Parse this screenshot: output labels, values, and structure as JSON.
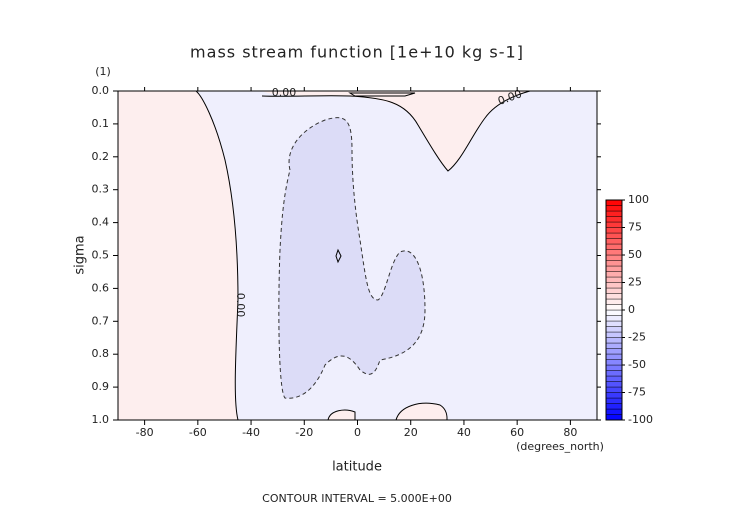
{
  "chart_data": {
    "type": "contour",
    "title": "mass stream function [1e+10 kg s-1]",
    "xlabel": "latitude",
    "ylabel": "sigma",
    "x_unit": "(degrees_north)",
    "y_unit": "(1)",
    "footer": "CONTOUR INTERVAL = 5.000E+00",
    "xlim": [
      -90,
      90
    ],
    "xticks": [
      -80,
      -60,
      -40,
      -20,
      0,
      20,
      40,
      60,
      80
    ],
    "ylim": [
      1.0,
      0.0
    ],
    "yticks": [
      {
        "value": 0,
        "label": "0.0"
      },
      0.1,
      0.2,
      0.3,
      0.4,
      0.5,
      0.6,
      0.7,
      0.8,
      0.9,
      {
        "value": 1,
        "label": "1.0"
      }
    ],
    "contour_labels": [
      "0.00",
      "0.00",
      "0.00"
    ],
    "colorbar": {
      "lim": [
        -100,
        100
      ],
      "ticks": [
        100,
        75,
        50,
        25,
        0,
        -25,
        -50,
        -75,
        -100
      ],
      "high_color": "#ff0000",
      "mid_color": "#ffffff",
      "low_color": "#0000ff"
    }
  }
}
